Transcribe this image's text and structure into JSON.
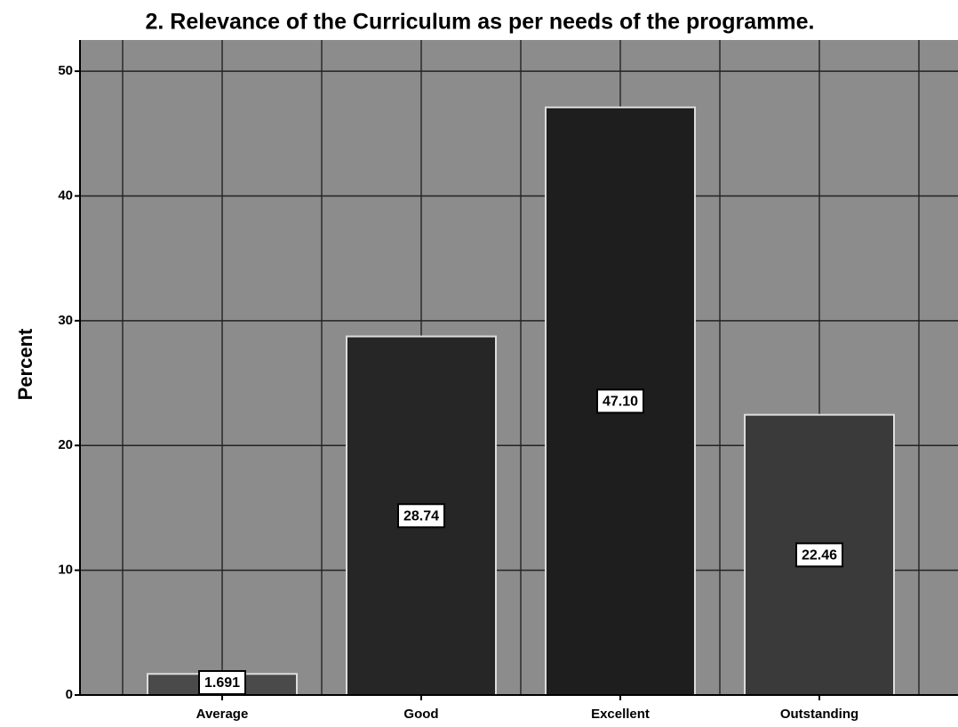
{
  "chart_data": {
    "type": "bar",
    "title": "2. Relevance of the Curriculum as per needs of the programme.",
    "y_label": "Percent",
    "categories": [
      "Average",
      "Good",
      "Excellent",
      "Outstanding"
    ],
    "values": [
      1.691,
      28.74,
      47.1,
      22.46
    ],
    "value_labels": [
      "1.691",
      "28.74",
      "47.10",
      "22.46"
    ],
    "colors": [
      "#4a4a4a",
      "#262626",
      "#1e1e1e",
      "#3a3a3a"
    ],
    "ylim": [
      0,
      52.5
    ],
    "yticks": [
      0,
      10,
      20,
      30,
      40,
      50
    ],
    "grid": true
  }
}
